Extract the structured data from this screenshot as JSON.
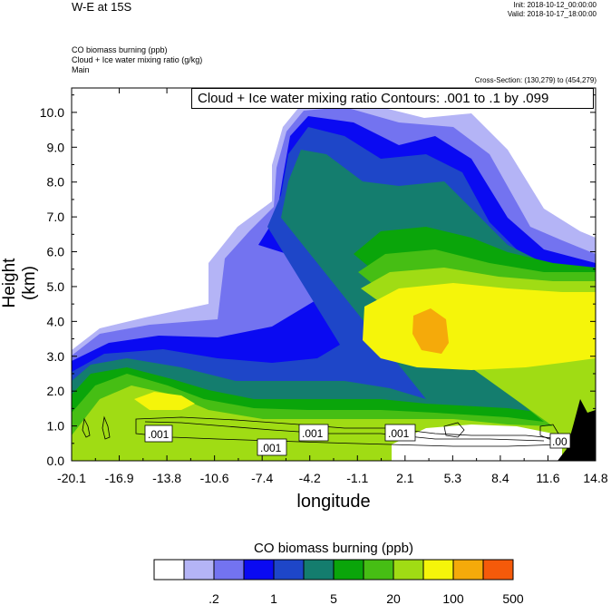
{
  "header": {
    "title": "W-E at 15S",
    "init": "Init: 2018-10-12_00:00:00",
    "valid": "Valid: 2018-10-17_18:00:00"
  },
  "fields": {
    "line1": "CO biomass burning   (ppb)",
    "line2": "Cloud + Ice water mixing ratio   (g/kg)",
    "line3": "Main"
  },
  "cross_section": "Cross-Section: (130,279) to (454,279)",
  "contour_info": "Cloud + Ice water mixing ratio Contours: .001 to .1 by .099",
  "colors": {
    "levels": [
      "#ffffff",
      "#b4b4f6",
      "#7373f0",
      "#0a0af2",
      "#1e46c8",
      "#147d6e",
      "#0aa50a",
      "#46be14",
      "#a0dc14",
      "#f5f50a",
      "#f5aa0a",
      "#f55a0a",
      "#f50a0a"
    ],
    "terrain": "#000000"
  },
  "chart_data": {
    "type": "heatmap",
    "title": "W-E at 15S",
    "xlabel": "longitude",
    "ylabel": "Height (km)",
    "xlim": [
      -20.1,
      14.8
    ],
    "ylim": [
      0.0,
      10.7
    ],
    "x_ticks": [
      "-20.1",
      "-16.9",
      "-13.8",
      "-10.6",
      "-7.4",
      "-4.2",
      "-1.1",
      "2.1",
      "5.3",
      "8.4",
      "11.6",
      "14.8"
    ],
    "y_ticks": [
      "0.0",
      "1.0",
      "2.0",
      "3.0",
      "4.0",
      "5.0",
      "6.0",
      "7.0",
      "8.0",
      "9.0",
      "10.0"
    ],
    "colorbar": {
      "title": "CO biomass burning  (ppb)",
      "tick_labels": [
        ".2",
        "1",
        "5",
        "20",
        "100",
        "500"
      ],
      "n_boxes": 12
    },
    "contour_labels": [
      ".001",
      ".001",
      ".001",
      ".001",
      ".00"
    ],
    "field_summary": {
      "max_region": "orange core near longitude 5, height about 4 km (100-200 ppb)",
      "high_plume": "yellow layer between longitude 1 and 14.8, height 2.5-5.5 km (50-100 ppb)",
      "upper_band": "blue/teal plume over -6 to 13 reaching 10.5 km"
    }
  }
}
